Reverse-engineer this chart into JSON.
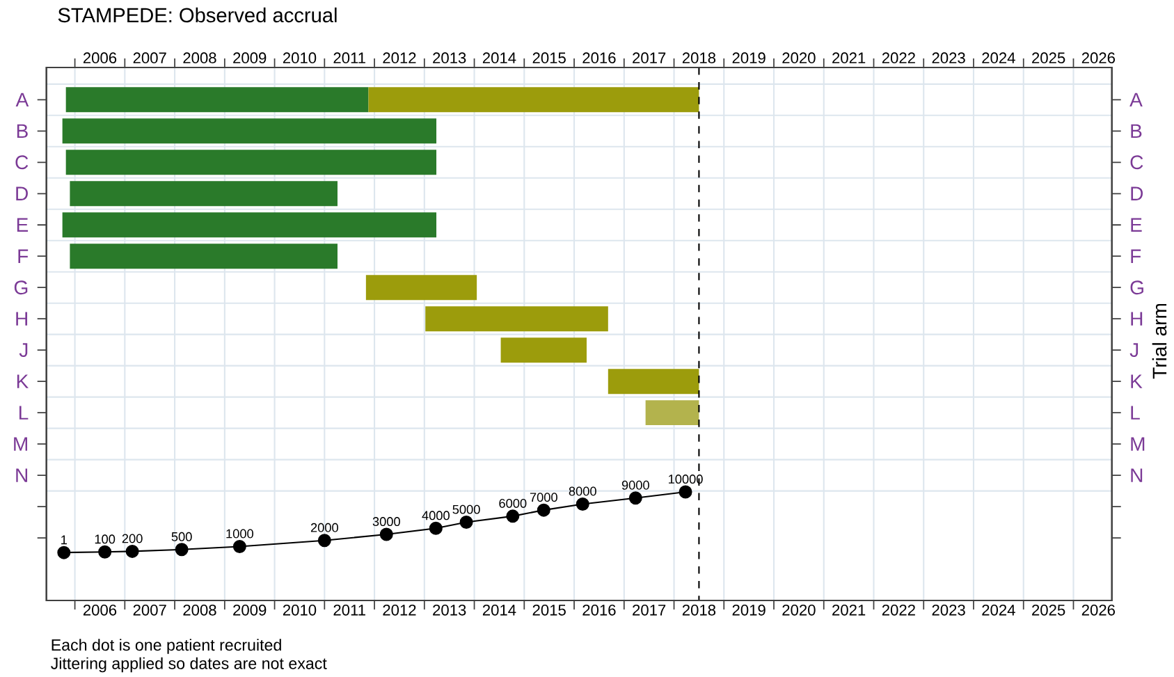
{
  "chart_data": [
    {
      "type": "bar",
      "orientation": "horizontal",
      "title": "STAMPEDE: Observed accrual",
      "ylabel": "Trial arm",
      "annotations": [
        "Each dot is one patient recruited",
        "Jittering applied so dates are not exact"
      ],
      "categories": [
        "A",
        "B",
        "C",
        "D",
        "E",
        "F",
        "G",
        "H",
        "J",
        "K",
        "L",
        "M",
        "N",
        null,
        null
      ],
      "series": [
        {
          "color": "#2a7a2a",
          "values": [
            6.06,
            7.49,
            7.42,
            5.36,
            7.49,
            5.36,
            null,
            null,
            null,
            null,
            null,
            null,
            null,
            null,
            null
          ],
          "base": [
            2005.82,
            2005.75,
            2005.82,
            2005.9,
            2005.75,
            2005.9,
            null,
            null,
            null,
            null,
            null,
            null,
            null,
            null,
            null
          ]
        },
        {
          "color": "#9c9c0c",
          "colors": [
            null,
            null,
            null,
            null,
            null,
            null,
            null,
            null,
            null,
            null,
            "#b3b34d",
            null,
            null,
            null,
            null
          ],
          "values": [
            6.62,
            null,
            null,
            null,
            null,
            null,
            2.22,
            3.66,
            1.72,
            1.82,
            1.07,
            null,
            null,
            null,
            null
          ],
          "base": [
            2011.88,
            null,
            null,
            null,
            null,
            null,
            2011.83,
            2013.02,
            2014.53,
            2016.68,
            2017.43,
            null,
            null,
            null,
            null
          ]
        }
      ],
      "xlim": [
        2005.43,
        2026.77
      ],
      "xticks": [
        {
          "value": 2006,
          "label": null
        },
        {
          "value": 2006.5,
          "label": "2006"
        },
        {
          "value": 2007,
          "label": null
        },
        {
          "value": 2007.5,
          "label": "2007"
        },
        {
          "value": 2008,
          "label": null
        },
        {
          "value": 2008.5,
          "label": "2008"
        },
        {
          "value": 2009,
          "label": null
        },
        {
          "value": 2009.5,
          "label": "2009"
        },
        {
          "value": 2010,
          "label": null
        },
        {
          "value": 2010.5,
          "label": "2010"
        },
        {
          "value": 2011,
          "label": null
        },
        {
          "value": 2011.5,
          "label": "2011"
        },
        {
          "value": 2012,
          "label": null
        },
        {
          "value": 2012.5,
          "label": "2012"
        },
        {
          "value": 2013,
          "label": null
        },
        {
          "value": 2013.5,
          "label": "2013"
        },
        {
          "value": 2014,
          "label": null
        },
        {
          "value": 2014.5,
          "label": "2014"
        },
        {
          "value": 2015,
          "label": null
        },
        {
          "value": 2015.5,
          "label": "2015"
        },
        {
          "value": 2016,
          "label": null
        },
        {
          "value": 2016.5,
          "label": "2016"
        },
        {
          "value": 2017,
          "label": null
        },
        {
          "value": 2017.5,
          "label": "2017"
        },
        {
          "value": 2018,
          "label": null
        },
        {
          "value": 2018.5,
          "label": "2018"
        },
        {
          "value": 2019,
          "label": null
        },
        {
          "value": 2019.5,
          "label": "2019"
        },
        {
          "value": 2020,
          "label": null
        },
        {
          "value": 2020.5,
          "label": "2020"
        },
        {
          "value": 2021,
          "label": null
        },
        {
          "value": 2021.5,
          "label": "2021"
        },
        {
          "value": 2022,
          "label": null
        },
        {
          "value": 2022.5,
          "label": "2022"
        },
        {
          "value": 2023,
          "label": null
        },
        {
          "value": 2023.5,
          "label": "2023"
        },
        {
          "value": 2024,
          "label": null
        },
        {
          "value": 2024.5,
          "label": "2024"
        },
        {
          "value": 2025,
          "label": null
        },
        {
          "value": 2025.5,
          "label": "2025"
        },
        {
          "value": 2026,
          "label": null
        },
        {
          "value": 2026.5,
          "label": "2026"
        }
      ],
      "x2lim": [
        2005.43,
        2026.77
      ],
      "x2ticks": [
        {
          "value": 2006,
          "label": null
        },
        {
          "value": 2006.5,
          "label": "2006"
        },
        {
          "value": 2007,
          "label": null
        },
        {
          "value": 2007.5,
          "label": "2007"
        },
        {
          "value": 2008,
          "label": null
        },
        {
          "value": 2008.5,
          "label": "2008"
        },
        {
          "value": 2009,
          "label": null
        },
        {
          "value": 2009.5,
          "label": "2009"
        },
        {
          "value": 2010,
          "label": null
        },
        {
          "value": 2010.5,
          "label": "2010"
        },
        {
          "value": 2011,
          "label": null
        },
        {
          "value": 2011.5,
          "label": "2011"
        },
        {
          "value": 2012,
          "label": null
        },
        {
          "value": 2012.5,
          "label": "2012"
        },
        {
          "value": 2013,
          "label": null
        },
        {
          "value": 2013.5,
          "label": "2013"
        },
        {
          "value": 2014,
          "label": null
        },
        {
          "value": 2014.5,
          "label": "2014"
        },
        {
          "value": 2015,
          "label": null
        },
        {
          "value": 2015.5,
          "label": "2015"
        },
        {
          "value": 2016,
          "label": null
        },
        {
          "value": 2016.5,
          "label": "2016"
        },
        {
          "value": 2017,
          "label": null
        },
        {
          "value": 2017.5,
          "label": "2017"
        },
        {
          "value": 2018,
          "label": null
        },
        {
          "value": 2018.5,
          "label": "2018"
        },
        {
          "value": 2019,
          "label": null
        },
        {
          "value": 2019.5,
          "label": "2019"
        },
        {
          "value": 2020,
          "label": null
        },
        {
          "value": 2020.5,
          "label": "2020"
        },
        {
          "value": 2021,
          "label": null
        },
        {
          "value": 2021.5,
          "label": "2021"
        },
        {
          "value": 2022,
          "label": null
        },
        {
          "value": 2022.5,
          "label": "2022"
        },
        {
          "value": 2023,
          "label": null
        },
        {
          "value": 2023.5,
          "label": "2023"
        },
        {
          "value": 2024,
          "label": null
        },
        {
          "value": 2024.5,
          "label": "2024"
        },
        {
          "value": 2025,
          "label": null
        },
        {
          "value": 2025.5,
          "label": "2025"
        },
        {
          "value": 2026,
          "label": null
        },
        {
          "value": 2026.5,
          "label": "2026"
        }
      ],
      "grid": true,
      "ref_lines": [
        {
          "axis": "x",
          "value": 2018.5,
          "line_style": "dashed",
          "color": "#000000"
        }
      ]
    },
    {
      "type": "line",
      "series": [
        {
          "color": "#000000",
          "marker": "circle",
          "x": [
            2005.78,
            2006.6,
            2007.15,
            2008.14,
            2009.3,
            2011.0,
            2012.24,
            2013.23,
            2013.84,
            2014.77,
            2015.39,
            2016.17,
            2017.23,
            2018.23
          ],
          "values": [
            1,
            100,
            200,
            500,
            1000,
            2000,
            3000,
            4000,
            5000,
            6000,
            7000,
            8000,
            9000,
            10000
          ],
          "value_labels": [
            "1",
            "100",
            "200",
            "500",
            "1000",
            "2000",
            "3000",
            "4000",
            "5000",
            "6000",
            "7000",
            "8000",
            "9000",
            "10000"
          ]
        }
      ],
      "xlim": [
        2005.43,
        2026.77
      ],
      "ylim": [
        -7900,
        80000
      ],
      "tick_labels": false
    }
  ]
}
